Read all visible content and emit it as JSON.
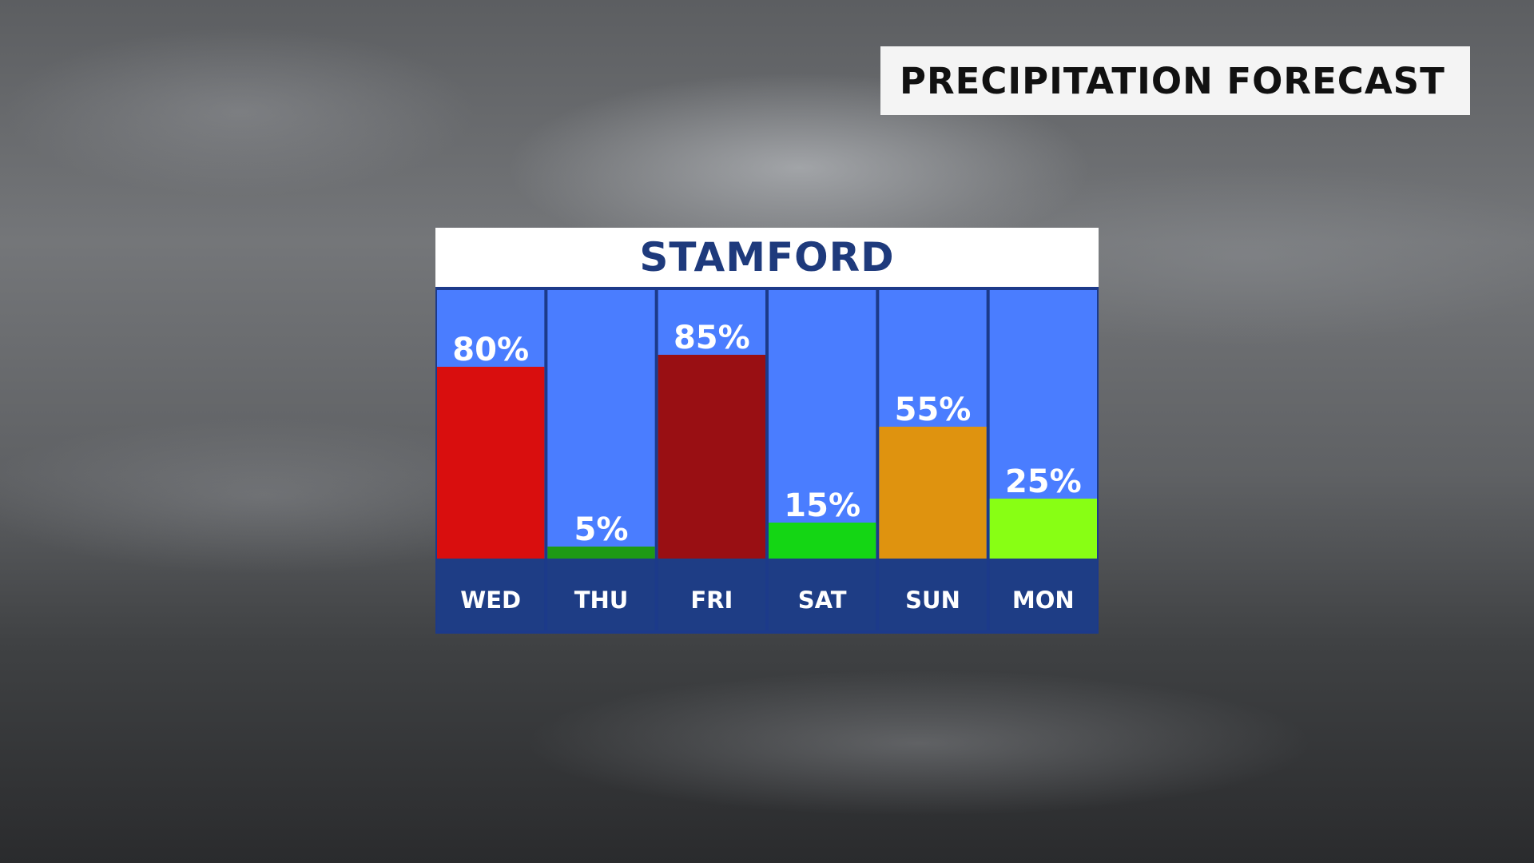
{
  "banner": {
    "title": "PRECIPITATION FORECAST"
  },
  "chart_data": {
    "type": "bar",
    "title": "STAMFORD",
    "unit": "%",
    "categories": [
      "WED",
      "THU",
      "FRI",
      "SAT",
      "SUN",
      "MON"
    ],
    "values": [
      80,
      5,
      85,
      15,
      55,
      25
    ],
    "value_labels": [
      "80%",
      "5%",
      "85%",
      "15%",
      "55%",
      "25%"
    ],
    "ylim": [
      0,
      100
    ],
    "bar_colors": [
      "#d90e0e",
      "#1e9a14",
      "#990f13",
      "#14d614",
      "#df930f",
      "#88ff14"
    ],
    "column_background": "#4a7dff",
    "day_label_background": "#1e3d85"
  }
}
